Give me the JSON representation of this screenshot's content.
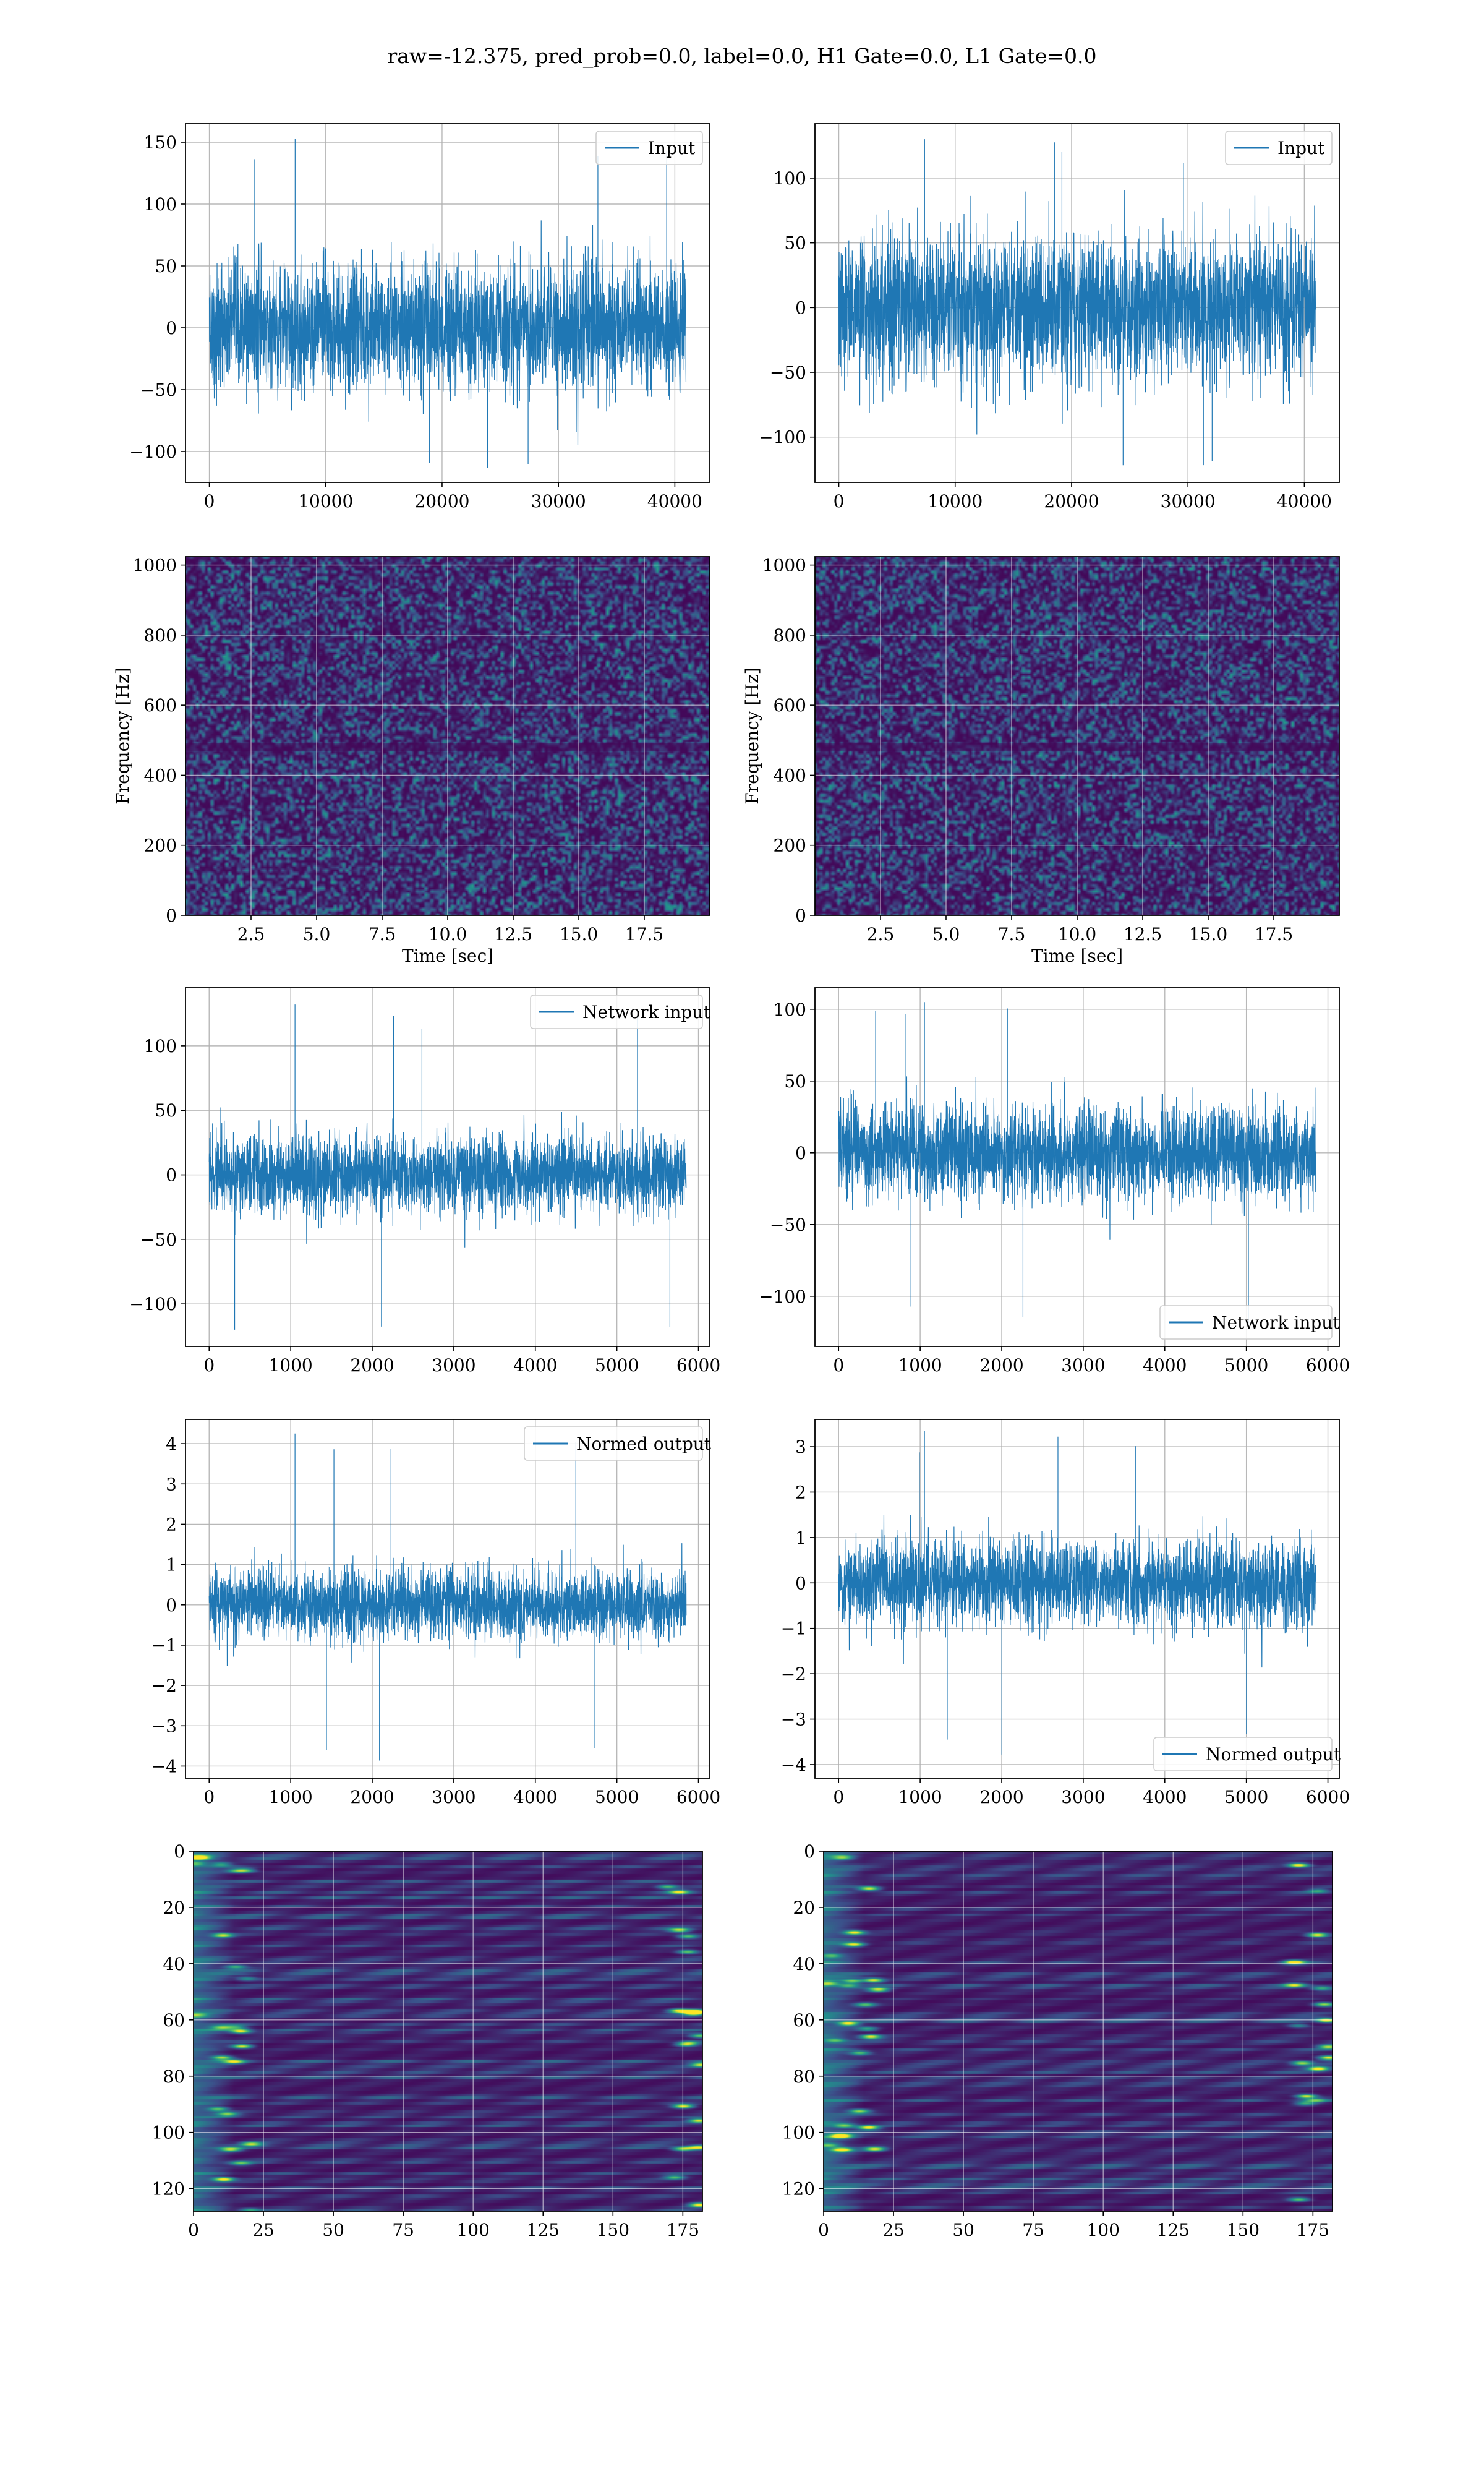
{
  "figure": {
    "suptitle": "raw=-12.375, pred_prob=0.0, label=0.0, H1 Gate=0.0, L1 Gate=0.0"
  },
  "colors": {
    "line": "#1f77b4",
    "grid": "#b0b0b0"
  },
  "chart_data": [
    {
      "id": "h1-input",
      "type": "line",
      "legend": "Input",
      "legend_loc": "upper right",
      "x_range": [
        0,
        40960
      ],
      "xlim": [
        -2048,
        43008
      ],
      "xticks": [
        0,
        10000,
        20000,
        30000,
        40000
      ],
      "ylim": [
        -125,
        165
      ],
      "yticks": [
        -100,
        -50,
        0,
        50,
        100,
        150
      ],
      "envelope": {
        "typical_amplitude": 60,
        "peak_max": 153,
        "peak_min": -116
      },
      "grid": true
    },
    {
      "id": "l1-input",
      "type": "line",
      "legend": "Input",
      "legend_loc": "upper right",
      "x_range": [
        0,
        40960
      ],
      "xlim": [
        -2048,
        43008
      ],
      "xticks": [
        0,
        10000,
        20000,
        30000,
        40000
      ],
      "ylim": [
        -135,
        142
      ],
      "yticks": [
        -100,
        -50,
        0,
        50,
        100
      ],
      "envelope": {
        "typical_amplitude": 65,
        "peak_max": 130,
        "peak_min": -122
      },
      "grid": true
    },
    {
      "id": "h1-spectrogram",
      "type": "heatmap",
      "xlim": [
        0,
        20
      ],
      "xticks": [
        2.5,
        5.0,
        7.5,
        10.0,
        12.5,
        15.0,
        17.5
      ],
      "ylim": [
        0,
        1024
      ],
      "yticks": [
        0,
        200,
        400,
        600,
        800,
        1000
      ],
      "xlabel": "Time [sec]",
      "ylabel": "Frequency [Hz]",
      "grid": true
    },
    {
      "id": "l1-spectrogram",
      "type": "heatmap",
      "xlim": [
        0,
        20
      ],
      "xticks": [
        2.5,
        5.0,
        7.5,
        10.0,
        12.5,
        15.0,
        17.5
      ],
      "ylim": [
        0,
        1024
      ],
      "yticks": [
        0,
        200,
        400,
        600,
        800,
        1000
      ],
      "xlabel": "Time [sec]",
      "ylabel": "Frequency [Hz]",
      "grid": true
    },
    {
      "id": "h1-network-input",
      "type": "line",
      "legend": "Network input",
      "legend_loc": "upper right",
      "x_range": [
        0,
        5850
      ],
      "xlim": [
        -290,
        6140
      ],
      "xticks": [
        0,
        1000,
        2000,
        3000,
        4000,
        5000,
        6000
      ],
      "ylim": [
        -133,
        145
      ],
      "yticks": [
        -100,
        -50,
        0,
        50,
        100
      ],
      "envelope": {
        "typical_amplitude": 35,
        "peak_max": 132,
        "peak_min": -122
      },
      "grid": true
    },
    {
      "id": "l1-network-input",
      "type": "line",
      "legend": "Network input",
      "legend_loc": "lower right",
      "x_range": [
        0,
        5850
      ],
      "xlim": [
        -290,
        6140
      ],
      "xticks": [
        0,
        1000,
        2000,
        3000,
        4000,
        5000,
        6000
      ],
      "ylim": [
        -135,
        115
      ],
      "yticks": [
        -100,
        -50,
        0,
        50,
        100
      ],
      "envelope": {
        "typical_amplitude": 38,
        "peak_max": 105,
        "peak_min": -122
      },
      "grid": true
    },
    {
      "id": "h1-normed-output",
      "type": "line",
      "legend": "Normed output",
      "legend_loc": "upper right",
      "x_range": [
        0,
        5850
      ],
      "xlim": [
        -290,
        6140
      ],
      "xticks": [
        0,
        1000,
        2000,
        3000,
        4000,
        5000,
        6000
      ],
      "ylim": [
        -4.3,
        4.6
      ],
      "yticks": [
        -4,
        -3,
        -2,
        -1,
        0,
        1,
        2,
        3,
        4
      ],
      "envelope": {
        "typical_amplitude": 1.0,
        "peak_max": 4.25,
        "peak_min": -3.9
      },
      "grid": true
    },
    {
      "id": "l1-normed-output",
      "type": "line",
      "legend": "Normed output",
      "legend_loc": "lower right",
      "x_range": [
        0,
        5850
      ],
      "xlim": [
        -290,
        6140
      ],
      "xticks": [
        0,
        1000,
        2000,
        3000,
        4000,
        5000,
        6000
      ],
      "ylim": [
        -4.3,
        3.6
      ],
      "yticks": [
        -4,
        -3,
        -2,
        -1,
        0,
        1,
        2,
        3
      ],
      "envelope": {
        "typical_amplitude": 1.1,
        "peak_max": 3.35,
        "peak_min": -3.9
      },
      "grid": true
    },
    {
      "id": "h1-feature-map",
      "type": "heatmap",
      "xlim": [
        0,
        182
      ],
      "xticks": [
        0,
        25,
        50,
        75,
        100,
        125,
        150,
        175
      ],
      "ylim": [
        128,
        0
      ],
      "yticks": [
        0,
        20,
        40,
        60,
        80,
        100,
        120
      ],
      "grid": true
    },
    {
      "id": "l1-feature-map",
      "type": "heatmap",
      "xlim": [
        0,
        182
      ],
      "xticks": [
        0,
        25,
        50,
        75,
        100,
        125,
        150,
        175
      ],
      "ylim": [
        128,
        0
      ],
      "yticks": [
        0,
        20,
        40,
        60,
        80,
        100,
        120
      ],
      "grid": true
    }
  ]
}
